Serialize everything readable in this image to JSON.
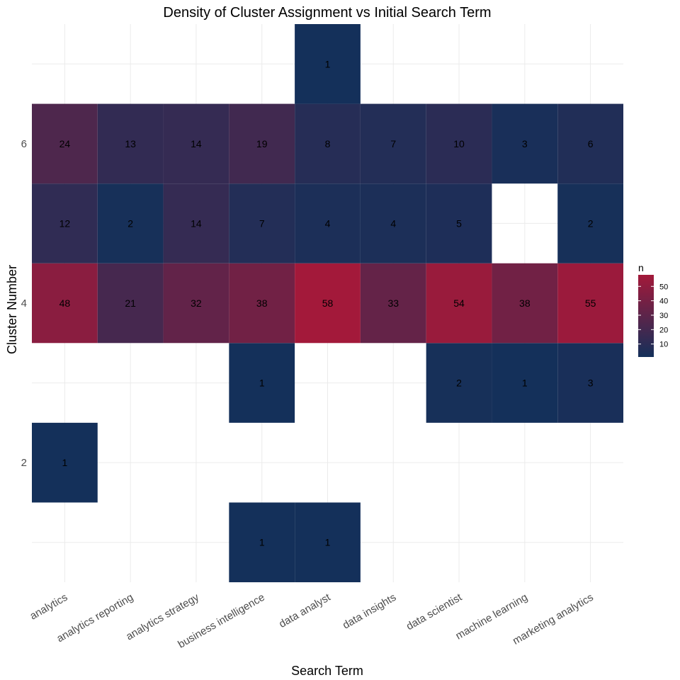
{
  "chart_data": {
    "type": "heatmap",
    "title": "Density of Cluster Assignment vs Initial Search Term",
    "xlabel": "Search Term",
    "ylabel": "Cluster Number",
    "x_categories": [
      "analytics",
      "analytics reporting",
      "analytics strategy",
      "business intelligence",
      "data analyst",
      "data insights",
      "data scientist",
      "machine learning",
      "marketing analytics"
    ],
    "y_ticks": [
      "2",
      "4",
      "6"
    ],
    "ylim": [
      0.5,
      7.5
    ],
    "grid": true,
    "legend": {
      "title": "n",
      "placement": "right",
      "ticks": [
        "10",
        "20",
        "30",
        "40",
        "50"
      ],
      "min": 1,
      "max": 58,
      "low_color": "#14305a",
      "high_color": "#a3193a"
    },
    "cells": [
      {
        "x": "analytics",
        "y": 2,
        "n": 1
      },
      {
        "x": "analytics",
        "y": 4,
        "n": 48
      },
      {
        "x": "analytics",
        "y": 5,
        "n": 12
      },
      {
        "x": "analytics",
        "y": 6,
        "n": 24
      },
      {
        "x": "analytics reporting",
        "y": 4,
        "n": 21
      },
      {
        "x": "analytics reporting",
        "y": 5,
        "n": 2
      },
      {
        "x": "analytics reporting",
        "y": 6,
        "n": 13
      },
      {
        "x": "analytics strategy",
        "y": 4,
        "n": 32
      },
      {
        "x": "analytics strategy",
        "y": 5,
        "n": 14
      },
      {
        "x": "analytics strategy",
        "y": 6,
        "n": 14
      },
      {
        "x": "business intelligence",
        "y": 1,
        "n": 1
      },
      {
        "x": "business intelligence",
        "y": 3,
        "n": 1
      },
      {
        "x": "business intelligence",
        "y": 4,
        "n": 38
      },
      {
        "x": "business intelligence",
        "y": 5,
        "n": 7
      },
      {
        "x": "business intelligence",
        "y": 6,
        "n": 19
      },
      {
        "x": "data analyst",
        "y": 1,
        "n": 1
      },
      {
        "x": "data analyst",
        "y": 4,
        "n": 58
      },
      {
        "x": "data analyst",
        "y": 5,
        "n": 4
      },
      {
        "x": "data analyst",
        "y": 6,
        "n": 8
      },
      {
        "x": "data analyst",
        "y": 7,
        "n": 1
      },
      {
        "x": "data insights",
        "y": 4,
        "n": 33
      },
      {
        "x": "data insights",
        "y": 5,
        "n": 4
      },
      {
        "x": "data insights",
        "y": 6,
        "n": 7
      },
      {
        "x": "data scientist",
        "y": 3,
        "n": 2
      },
      {
        "x": "data scientist",
        "y": 4,
        "n": 54
      },
      {
        "x": "data scientist",
        "y": 5,
        "n": 5
      },
      {
        "x": "data scientist",
        "y": 6,
        "n": 10
      },
      {
        "x": "machine learning",
        "y": 3,
        "n": 1
      },
      {
        "x": "machine learning",
        "y": 4,
        "n": 38
      },
      {
        "x": "machine learning",
        "y": 6,
        "n": 3
      },
      {
        "x": "marketing analytics",
        "y": 3,
        "n": 3
      },
      {
        "x": "marketing analytics",
        "y": 4,
        "n": 55
      },
      {
        "x": "marketing analytics",
        "y": 5,
        "n": 2
      },
      {
        "x": "marketing analytics",
        "y": 6,
        "n": 6
      }
    ]
  }
}
